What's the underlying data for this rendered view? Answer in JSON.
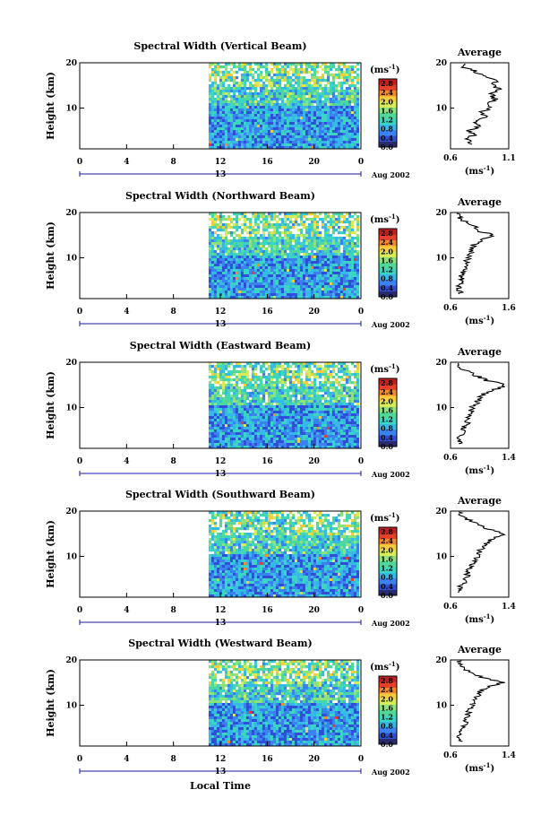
{
  "colors": {
    "colormap": [
      "#2a2a6e",
      "#2f4fd8",
      "#3b82f0",
      "#36b8e8",
      "#3ad6c2",
      "#4fd89a",
      "#8ee27a",
      "#d8ec5a",
      "#f7cc3c",
      "#f58a2c",
      "#e6402a",
      "#c02020"
    ],
    "missing": "#ffffff",
    "profile_line": "#000000",
    "date_arrow": "#1a1a9e"
  },
  "chart_data": [
    {
      "type": "heatmap",
      "title": "Spectral Width (Vertical Beam)",
      "ylabel": "Height (km)",
      "xticks": [
        "0",
        "4",
        "8",
        "12",
        "16",
        "20",
        "0"
      ],
      "xlim": [
        0,
        24
      ],
      "yticks": [
        "20",
        "10"
      ],
      "ylim": [
        1,
        20
      ],
      "data_start_hour": 11,
      "date_mid": "13",
      "date_label": "Aug 2002",
      "colorbar": {
        "unit": "(ms",
        "unit_exp": "-1",
        "unit_close": ")",
        "ticks": [
          "2.8",
          "2.4",
          "2.0",
          "1.6",
          "1.2",
          "0.8",
          "0.4",
          "0.0"
        ],
        "range": [
          0,
          3.0
        ]
      },
      "profile": {
        "title": "Average",
        "xticks": [
          "0.6",
          "1.1"
        ],
        "xlim": [
          0.6,
          1.1
        ],
        "xunit": "(ms",
        "xunit_exp": "-1",
        "xunit_close": ")",
        "yticks": [
          "20",
          "10"
        ],
        "heights": [
          2,
          3,
          4,
          5,
          6,
          7,
          8,
          9,
          10,
          11,
          12,
          13,
          14,
          15,
          16,
          17,
          18,
          19
        ],
        "values": [
          0.78,
          0.74,
          0.8,
          0.76,
          0.84,
          0.82,
          0.9,
          0.86,
          0.94,
          0.92,
          0.98,
          0.95,
          1.02,
          0.96,
          1.0,
          0.9,
          0.82,
          0.72
        ]
      }
    },
    {
      "type": "heatmap",
      "title": "Spectral Width (Northward Beam)",
      "ylabel": "Height (km)",
      "xticks": [
        "0",
        "4",
        "8",
        "12",
        "16",
        "20",
        "0"
      ],
      "xlim": [
        0,
        24
      ],
      "yticks": [
        "20",
        "10"
      ],
      "ylim": [
        1,
        20
      ],
      "data_start_hour": 11,
      "date_mid": "13",
      "date_label": "Aug 2002",
      "colorbar": {
        "unit": "(ms",
        "unit_exp": "-1",
        "unit_close": ")",
        "ticks": [
          "2.8",
          "2.4",
          "2.0",
          "1.6",
          "1.2",
          "0.8",
          "0.4",
          "0.0"
        ],
        "range": [
          0,
          3.0
        ]
      },
      "profile": {
        "title": "Average",
        "xticks": [
          "0.6",
          "1.6"
        ],
        "xlim": [
          0.6,
          1.6
        ],
        "xunit": "(ms",
        "xunit_exp": "-1",
        "xunit_close": ")",
        "yticks": [
          "20",
          "10"
        ],
        "heights": [
          2,
          3,
          4,
          5,
          6,
          7,
          8,
          9,
          10,
          11,
          12,
          13,
          14,
          15,
          16,
          17,
          18,
          19
        ],
        "values": [
          0.78,
          0.72,
          0.74,
          0.8,
          0.78,
          0.84,
          0.88,
          0.86,
          0.9,
          0.96,
          0.94,
          1.02,
          1.15,
          1.32,
          1.08,
          1.0,
          0.84,
          0.76
        ]
      }
    },
    {
      "type": "heatmap",
      "title": "Spectral Width (Eastward Beam)",
      "ylabel": "Height (km)",
      "xticks": [
        "0",
        "4",
        "8",
        "12",
        "16",
        "20",
        "0"
      ],
      "xlim": [
        0,
        24
      ],
      "yticks": [
        "20",
        "10"
      ],
      "ylim": [
        1,
        20
      ],
      "data_start_hour": 11,
      "date_mid": "13",
      "date_label": "Aug 2002",
      "colorbar": {
        "unit": "(ms",
        "unit_exp": "-1",
        "unit_close": ")",
        "ticks": [
          "2.8",
          "2.4",
          "2.0",
          "1.6",
          "1.2",
          "0.8",
          "0.4",
          "0.0"
        ],
        "range": [
          0,
          3.0
        ]
      },
      "profile": {
        "title": "Average",
        "xticks": [
          "0.6",
          "1.4"
        ],
        "xlim": [
          0.6,
          1.4
        ],
        "xunit": "(ms",
        "xunit_exp": "-1",
        "xunit_close": ")",
        "yticks": [
          "20",
          "10"
        ],
        "heights": [
          2,
          3,
          4,
          5,
          6,
          7,
          8,
          9,
          10,
          11,
          12,
          13,
          14,
          15,
          16,
          17,
          18,
          19
        ],
        "values": [
          0.72,
          0.7,
          0.76,
          0.78,
          0.8,
          0.84,
          0.86,
          0.9,
          0.88,
          0.96,
          1.0,
          1.04,
          1.22,
          1.36,
          1.1,
          0.96,
          0.82,
          0.74
        ]
      }
    },
    {
      "type": "heatmap",
      "title": "Spectral Width (Southward Beam)",
      "ylabel": "Height (km)",
      "xticks": [
        "0",
        "4",
        "8",
        "12",
        "16",
        "20",
        "0"
      ],
      "xlim": [
        0,
        24
      ],
      "yticks": [
        "20",
        "10"
      ],
      "ylim": [
        1,
        20
      ],
      "data_start_hour": 11,
      "date_mid": "13",
      "date_label": "Aug 2002",
      "colorbar": {
        "unit": "(ms",
        "unit_exp": "-1",
        "unit_close": ")",
        "ticks": [
          "2.8",
          "2.4",
          "2.0",
          "1.6",
          "1.2",
          "0.8",
          "0.4",
          "0.0"
        ],
        "range": [
          0,
          3.0
        ]
      },
      "profile": {
        "title": "Average",
        "xticks": [
          "0.6",
          "1.4"
        ],
        "xlim": [
          0.6,
          1.4
        ],
        "xunit": "(ms",
        "xunit_exp": "-1",
        "xunit_close": ")",
        "yticks": [
          "20",
          "10"
        ],
        "heights": [
          2,
          3,
          4,
          5,
          6,
          7,
          8,
          9,
          10,
          11,
          12,
          13,
          14,
          15,
          16,
          17,
          18,
          19
        ],
        "values": [
          0.74,
          0.72,
          0.78,
          0.8,
          0.84,
          0.86,
          0.9,
          0.92,
          0.98,
          1.0,
          1.04,
          1.1,
          1.18,
          1.34,
          1.12,
          1.0,
          0.86,
          0.76
        ]
      }
    },
    {
      "type": "heatmap",
      "title": "Spectral Width (Westward Beam)",
      "ylabel": "Height (km)",
      "xticks": [
        "0",
        "4",
        "8",
        "12",
        "16",
        "20",
        "0"
      ],
      "xlim": [
        0,
        24
      ],
      "yticks": [
        "20",
        "10"
      ],
      "ylim": [
        1,
        20
      ],
      "data_start_hour": 11,
      "date_mid": "13",
      "date_label": "Aug 2002",
      "xlabel": "Local Time",
      "colorbar": {
        "unit": "(ms",
        "unit_exp": "-1",
        "unit_close": ")",
        "ticks": [
          "2.8",
          "2.4",
          "2.0",
          "1.6",
          "1.2",
          "0.8",
          "0.4",
          "0.0"
        ],
        "range": [
          0,
          3.0
        ]
      },
      "profile": {
        "title": "Average",
        "xticks": [
          "0.6",
          "1.4"
        ],
        "xlim": [
          0.6,
          1.4
        ],
        "xunit": "(ms",
        "xunit_exp": "-1",
        "xunit_close": ")",
        "yticks": [
          "20",
          "10"
        ],
        "heights": [
          2,
          3,
          4,
          5,
          6,
          7,
          8,
          9,
          10,
          11,
          12,
          13,
          14,
          15,
          16,
          17,
          18,
          19
        ],
        "values": [
          0.72,
          0.7,
          0.74,
          0.76,
          0.8,
          0.82,
          0.84,
          0.86,
          0.9,
          0.92,
          0.96,
          1.0,
          1.12,
          1.3,
          1.06,
          0.94,
          0.8,
          0.72
        ]
      }
    }
  ]
}
